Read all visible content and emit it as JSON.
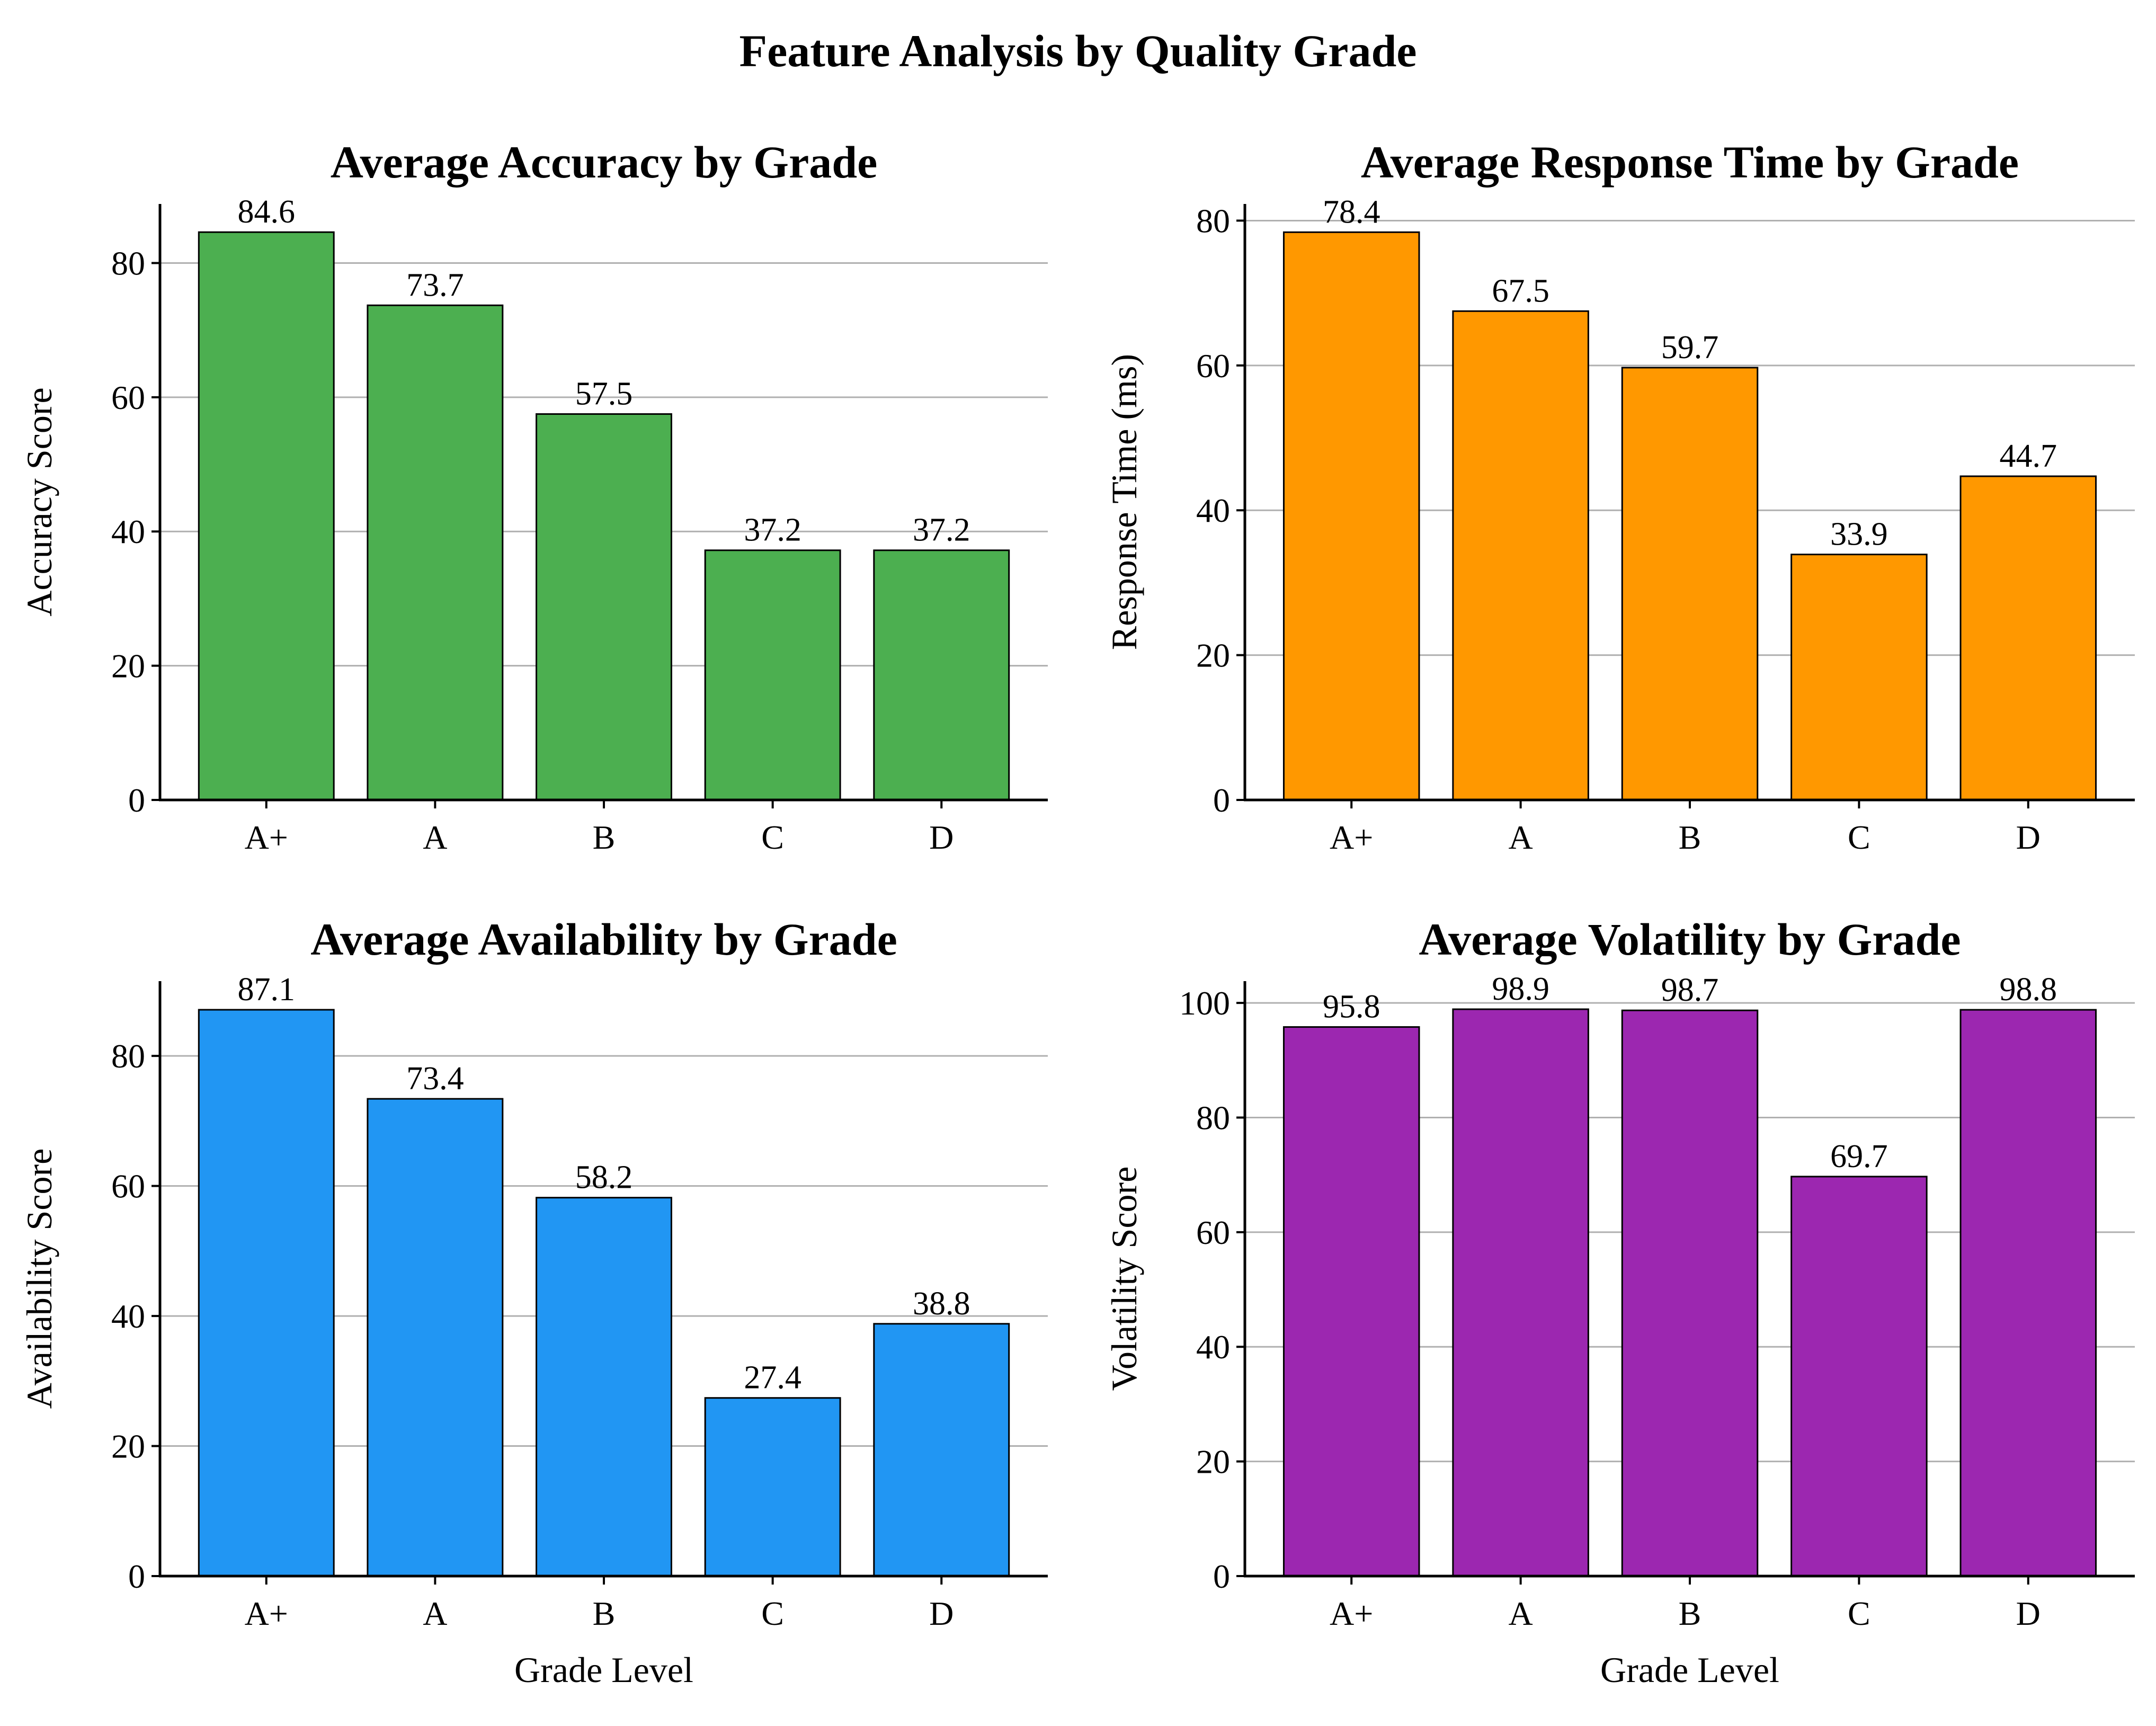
{
  "figure": {
    "title": "Feature Analysis by Quality Grade"
  },
  "chart_data": [
    {
      "type": "bar",
      "title": "Average Accuracy by Grade",
      "xlabel": "",
      "ylabel": "Accuracy Score",
      "categories": [
        "A+",
        "A",
        "B",
        "C",
        "D"
      ],
      "values": [
        84.6,
        73.7,
        57.5,
        37.2,
        37.2
      ],
      "value_labels": [
        "84.6",
        "73.7",
        "57.5",
        "37.2",
        "37.2"
      ],
      "ylim": [
        0,
        88.8
      ],
      "yticks": [
        0,
        20,
        40,
        60,
        80
      ],
      "color": "#4CAF50",
      "grid": "y"
    },
    {
      "type": "bar",
      "title": "Average Response Time by Grade",
      "xlabel": "",
      "ylabel": "Response Time (ms)",
      "categories": [
        "A+",
        "A",
        "B",
        "C",
        "D"
      ],
      "values": [
        78.4,
        67.5,
        59.7,
        33.9,
        44.7
      ],
      "value_labels": [
        "78.4",
        "67.5",
        "59.7",
        "33.9",
        "44.7"
      ],
      "ylim": [
        0,
        82.3
      ],
      "yticks": [
        0,
        20,
        40,
        60,
        80
      ],
      "color": "#FF9800",
      "grid": "y"
    },
    {
      "type": "bar",
      "title": "Average Availability by Grade",
      "xlabel": "Grade Level",
      "ylabel": "Availability Score",
      "categories": [
        "A+",
        "A",
        "B",
        "C",
        "D"
      ],
      "values": [
        87.1,
        73.4,
        58.2,
        27.4,
        38.8
      ],
      "value_labels": [
        "87.1",
        "73.4",
        "58.2",
        "27.4",
        "38.8"
      ],
      "ylim": [
        0,
        91.5
      ],
      "yticks": [
        0,
        20,
        40,
        60,
        80
      ],
      "color": "#2196F3",
      "grid": "y"
    },
    {
      "type": "bar",
      "title": "Average Volatility by Grade",
      "xlabel": "Grade Level",
      "ylabel": "Volatility Score",
      "categories": [
        "A+",
        "A",
        "B",
        "C",
        "D"
      ],
      "values": [
        95.8,
        98.9,
        98.7,
        69.7,
        98.8
      ],
      "value_labels": [
        "95.8",
        "98.9",
        "98.7",
        "69.7",
        "98.8"
      ],
      "ylim": [
        0,
        103.8
      ],
      "yticks": [
        0,
        20,
        40,
        60,
        80,
        100
      ],
      "color": "#9C27B0",
      "grid": "y"
    }
  ]
}
